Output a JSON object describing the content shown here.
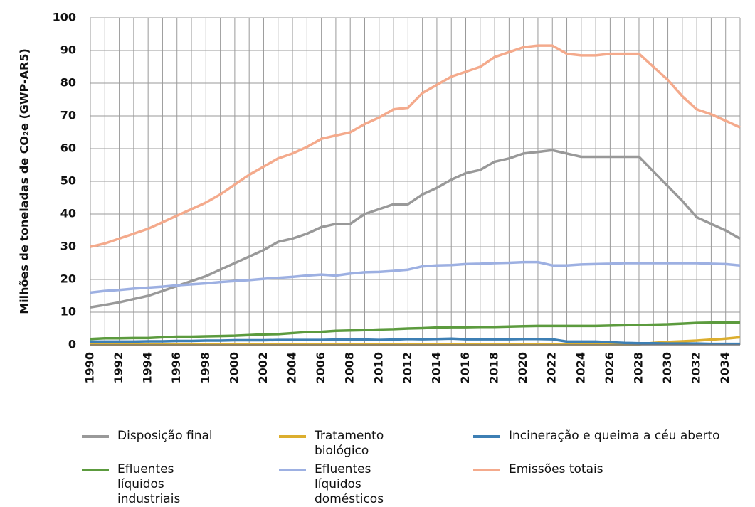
{
  "chart_data": {
    "type": "line",
    "ylabel": "Milhões de toneladas de CO₂e (GWP-AR5)",
    "x": [
      1990,
      1991,
      1992,
      1993,
      1994,
      1995,
      1996,
      1997,
      1998,
      1999,
      2000,
      2001,
      2002,
      2003,
      2004,
      2005,
      2006,
      2007,
      2008,
      2009,
      2010,
      2011,
      2012,
      2013,
      2014,
      2015,
      2016,
      2017,
      2018,
      2019,
      2020,
      2021,
      2022,
      2023,
      2024,
      2025,
      2026,
      2027,
      2028,
      2029,
      2030,
      2031,
      2032,
      2033,
      2034,
      2035
    ],
    "xlim": [
      1990,
      2035
    ],
    "xticks": [
      1990,
      1992,
      1994,
      1996,
      1998,
      2000,
      2002,
      2004,
      2006,
      2008,
      2010,
      2012,
      2014,
      2016,
      2018,
      2020,
      2022,
      2024,
      2026,
      2028,
      2030,
      2032,
      2034
    ],
    "ylim": [
      0,
      100
    ],
    "yticks": [
      0,
      10,
      20,
      30,
      40,
      50,
      60,
      70,
      80,
      90,
      100
    ],
    "grid": true,
    "legend": "bottom",
    "series": [
      {
        "name": "Disposição final",
        "color": "#999999",
        "values": [
          11.5,
          12.2,
          13,
          14,
          15,
          16.5,
          18,
          19.5,
          21,
          23,
          25,
          27,
          29,
          31.5,
          32.5,
          34,
          36,
          37,
          37,
          40,
          41.5,
          43,
          43,
          46,
          48,
          50.5,
          52.5,
          53.5,
          56,
          57,
          58.5,
          59,
          59.5,
          58.5,
          57.5,
          57.5,
          57.5,
          57.5,
          57.5,
          53,
          48.5,
          44,
          39,
          37,
          35,
          32.5
        ]
      },
      {
        "name": "Tratamento biológico",
        "color": "#dcae2e",
        "values": [
          0.1,
          0.1,
          0.1,
          0.1,
          0.1,
          0.1,
          0.1,
          0.1,
          0.1,
          0.1,
          0.1,
          0.1,
          0.1,
          0.1,
          0.1,
          0.1,
          0.1,
          0.1,
          0.1,
          0.1,
          0.1,
          0.1,
          0.1,
          0.1,
          0.1,
          0.1,
          0.1,
          0.1,
          0.1,
          0.1,
          0.2,
          0.2,
          0.2,
          0.2,
          0.2,
          0.2,
          0.2,
          0.2,
          0.2,
          0.6,
          0.9,
          1.1,
          1.3,
          1.6,
          1.9,
          2.3
        ]
      },
      {
        "name": "Incineração e queima a céu aberto",
        "color": "#3d7fb4",
        "values": [
          1,
          1,
          1,
          1,
          1.1,
          1.1,
          1.2,
          1.2,
          1.3,
          1.3,
          1.4,
          1.4,
          1.4,
          1.5,
          1.5,
          1.5,
          1.5,
          1.6,
          1.7,
          1.6,
          1.5,
          1.6,
          1.8,
          1.7,
          1.8,
          1.9,
          1.7,
          1.7,
          1.7,
          1.7,
          1.8,
          1.8,
          1.7,
          1,
          1,
          1,
          0.8,
          0.6,
          0.5,
          0.5,
          0.4,
          0.4,
          0.4,
          0.3,
          0.3,
          0.3
        ]
      },
      {
        "name": "Efluentes líquidos industriais",
        "color": "#5c9b3e",
        "values": [
          1.8,
          2,
          2,
          2.1,
          2.1,
          2.3,
          2.5,
          2.5,
          2.6,
          2.7,
          2.8,
          3,
          3.2,
          3.3,
          3.6,
          3.9,
          4,
          4.3,
          4.4,
          4.5,
          4.7,
          4.8,
          5,
          5.1,
          5.3,
          5.4,
          5.4,
          5.5,
          5.5,
          5.6,
          5.7,
          5.8,
          5.8,
          5.8,
          5.8,
          5.8,
          5.9,
          6,
          6.1,
          6.2,
          6.3,
          6.5,
          6.7,
          6.8,
          6.8,
          6.8
        ]
      },
      {
        "name": "Efluentes líquidos domésticos",
        "color": "#9db0e2",
        "values": [
          16,
          16.5,
          16.8,
          17.2,
          17.5,
          17.8,
          18.2,
          18.5,
          18.8,
          19.2,
          19.5,
          19.8,
          20.2,
          20.5,
          20.8,
          21.2,
          21.5,
          21.2,
          21.8,
          22.2,
          22.3,
          22.6,
          23,
          24,
          24.3,
          24.4,
          24.7,
          24.8,
          25,
          25.1,
          25.3,
          25.3,
          24.3,
          24.3,
          24.6,
          24.7,
          24.8,
          25,
          25,
          25,
          25,
          25,
          25,
          24.8,
          24.7,
          24.3
        ]
      },
      {
        "name": "Emissões totais",
        "color": "#f4aa8c",
        "values": [
          30,
          31,
          32.5,
          34,
          35.5,
          37.5,
          39.5,
          41.5,
          43.5,
          46,
          49,
          52,
          54.5,
          57,
          58.5,
          60.5,
          63,
          64,
          65,
          67.5,
          69.5,
          72,
          72.5,
          77,
          79.5,
          82,
          83.5,
          85,
          88,
          89.5,
          91,
          91.5,
          91.5,
          89,
          88.5,
          88.5,
          89,
          89,
          89,
          85,
          81,
          76,
          72,
          70.5,
          68.5,
          66.5
        ]
      }
    ]
  }
}
